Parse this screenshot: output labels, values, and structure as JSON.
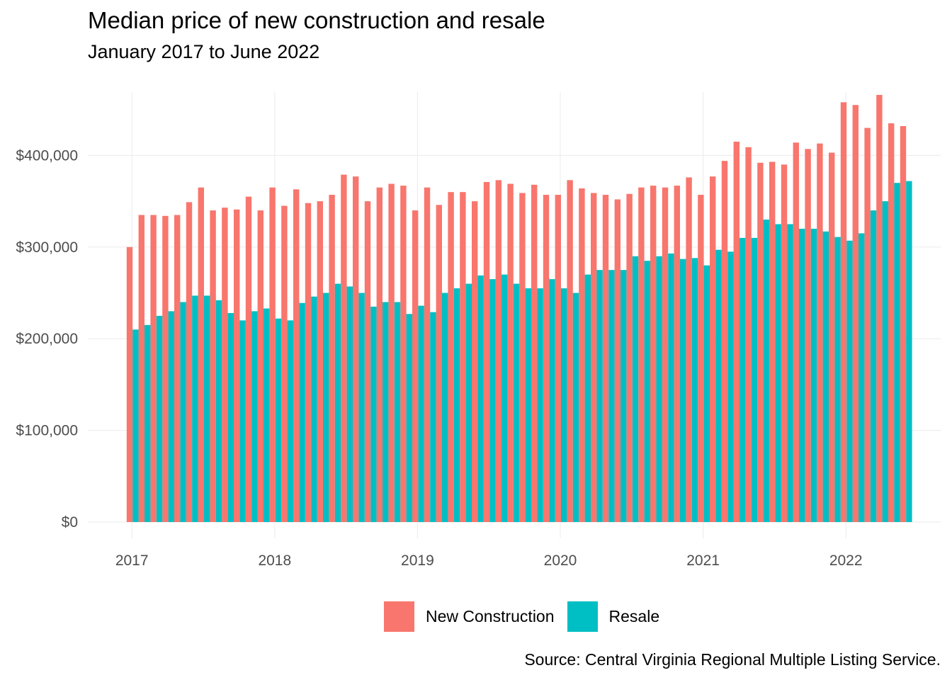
{
  "chart_data": {
    "type": "bar",
    "title": "Median price of new construction and resale",
    "subtitle": "January 2017 to June 2022",
    "caption": "Source: Central Virginia Regional Multiple Listing Service.",
    "xlabel": "",
    "ylabel": "",
    "x_start": "2017-01",
    "x_end": "2022-06",
    "x_ticks": [
      "2017",
      "2018",
      "2019",
      "2020",
      "2021",
      "2022"
    ],
    "y_ticks": [
      "$0",
      "$100,000",
      "$200,000",
      "$300,000",
      "$400,000"
    ],
    "ylim": [
      0,
      465000
    ],
    "grid": true,
    "legend_position": "bottom",
    "series": [
      {
        "name": "New Construction",
        "color": "#F8766D",
        "values": [
          300000,
          335000,
          335000,
          334000,
          335000,
          349000,
          365000,
          340000,
          343000,
          341000,
          355000,
          340000,
          365000,
          345000,
          363000,
          348000,
          350000,
          357000,
          379000,
          377000,
          350000,
          365000,
          369000,
          367000,
          340000,
          365000,
          346000,
          360000,
          360000,
          350000,
          371000,
          373000,
          369000,
          359000,
          368000,
          357000,
          357000,
          373000,
          364000,
          359000,
          357000,
          352000,
          358000,
          365000,
          367000,
          365000,
          367000,
          376000,
          357000,
          377000,
          394000,
          415000,
          409000,
          392000,
          393000,
          390000,
          414000,
          407000,
          413000,
          403000,
          458000,
          455000,
          430000,
          466000,
          435000,
          432000
        ]
      },
      {
        "name": "Resale",
        "color": "#00BFC4",
        "values": [
          210000,
          215000,
          225000,
          230000,
          240000,
          247000,
          247000,
          242000,
          228000,
          220000,
          230000,
          233000,
          222000,
          220000,
          239000,
          246000,
          250000,
          260000,
          257000,
          250000,
          235000,
          240000,
          240000,
          227000,
          236000,
          229000,
          250000,
          255000,
          260000,
          269000,
          265000,
          270000,
          260000,
          255000,
          255000,
          265000,
          255000,
          250000,
          270000,
          275000,
          275000,
          275000,
          290000,
          285000,
          290000,
          293000,
          287000,
          288000,
          280000,
          297000,
          295000,
          310000,
          310000,
          330000,
          325000,
          325000,
          320000,
          320000,
          317000,
          311000,
          307000,
          315000,
          340000,
          350000,
          370000,
          372000
        ]
      }
    ]
  }
}
